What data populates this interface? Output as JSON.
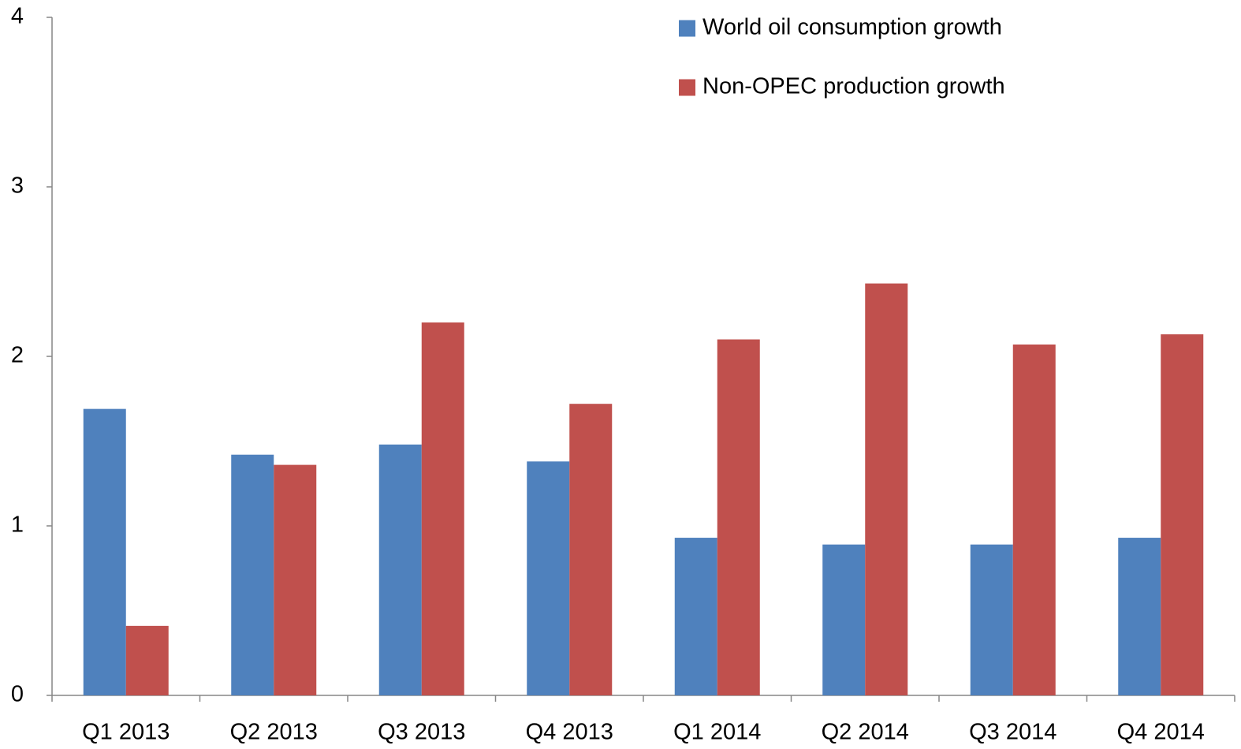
{
  "chart_data": {
    "type": "bar",
    "categories": [
      "Q1 2013",
      "Q2 2013",
      "Q3 2013",
      "Q4 2013",
      "Q1 2014",
      "Q2 2014",
      "Q3 2014",
      "Q4 2014"
    ],
    "series": [
      {
        "name": "World oil consumption growth",
        "color": "#4f81bd",
        "values": [
          1.69,
          1.42,
          1.48,
          1.38,
          0.93,
          0.89,
          0.89,
          0.93
        ]
      },
      {
        "name": "Non-OPEC production growth",
        "color": "#c0504d",
        "values": [
          0.41,
          1.36,
          2.2,
          1.72,
          2.1,
          2.43,
          2.07,
          2.13
        ]
      }
    ],
    "ylim": [
      0,
      4
    ],
    "yticks": [
      0,
      1,
      2,
      3,
      4
    ],
    "grid": false,
    "legend": "top-right"
  }
}
